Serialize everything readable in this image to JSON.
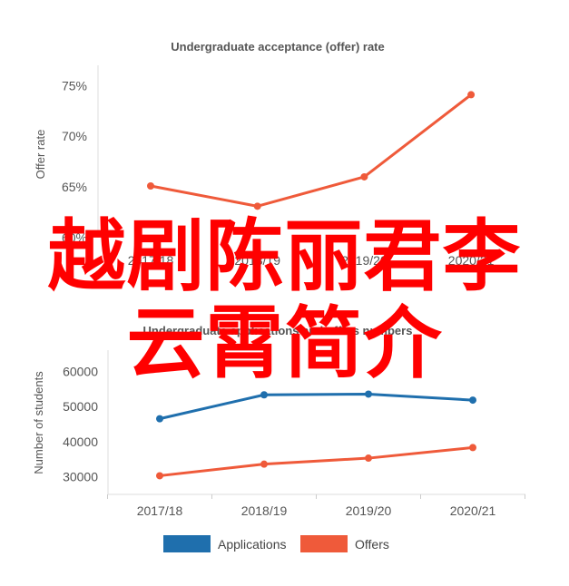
{
  "chart_data": [
    {
      "type": "line",
      "title": "Undergraduate acceptance (offer) rate",
      "xlabel": "",
      "ylabel": "Offer rate",
      "categories": [
        "2017/18",
        "2018/19",
        "2019/20",
        "2020/21"
      ],
      "y_ticks": [
        "60%",
        "65%",
        "70%",
        "75%"
      ],
      "ylim": [
        60,
        77
      ],
      "grid": false,
      "series": [
        {
          "values": [
            65.1,
            63.1,
            66.0,
            74.1
          ],
          "color": "#ef5a3a"
        }
      ]
    },
    {
      "type": "line",
      "title": "Undergraduate applications and offers numbers",
      "xlabel": "",
      "ylabel": "Number of students",
      "categories": [
        "2017/18",
        "2018/19",
        "2019/20",
        "2020/21"
      ],
      "y_ticks": [
        "30000",
        "40000",
        "50000",
        "60000"
      ],
      "ylim": [
        25000,
        66000
      ],
      "grid": false,
      "legend_position": "bottom",
      "series": [
        {
          "name": "Applications",
          "values": [
            46500,
            53300,
            53500,
            51800
          ],
          "color": "#1f6fad"
        },
        {
          "name": "Offers",
          "values": [
            30300,
            33600,
            35300,
            38300
          ],
          "color": "#ef5a3a"
        }
      ]
    }
  ],
  "overlay": {
    "line1": "越剧陈丽君李",
    "line2": "云霄简介",
    "color": "#ff0000"
  }
}
